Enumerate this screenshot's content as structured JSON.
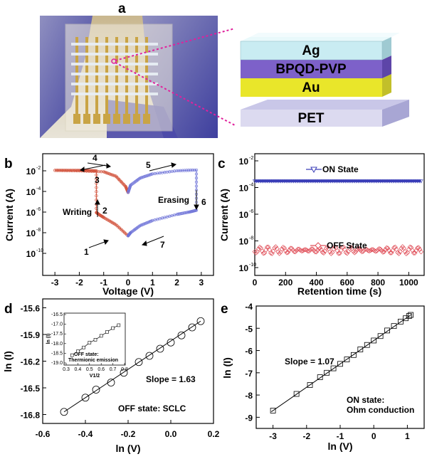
{
  "panel_labels": {
    "a": "a",
    "b": "b",
    "c": "c",
    "d": "d",
    "e": "e"
  },
  "panel_a": {
    "layers": [
      "Ag",
      "BPQD-PVP",
      "Au",
      "PET"
    ],
    "colors": {
      "ag": "#c9ecf2",
      "bpqd": "#7d61c9",
      "au": "#e9e62a",
      "pet": "#d9d7ee",
      "leader": "#e0219c"
    }
  },
  "panel_b": {
    "ylabel": "Current (A)",
    "xlabel": "Voltage (V)",
    "xticks": [
      "-3",
      "-2",
      "-1",
      "0",
      "1",
      "2",
      "3"
    ],
    "ytick_mant": [
      "10",
      "10",
      "10",
      "10",
      "10",
      "10"
    ],
    "ytick_exp": [
      "-2",
      "-4",
      "-6",
      "-8",
      "-10",
      ""
    ],
    "annotations": {
      "writing": "Writing",
      "erasing": "Erasing"
    },
    "step_numbers": [
      "1",
      "2",
      "3",
      "4",
      "5",
      "6",
      "7"
    ],
    "colors": {
      "set": "#d2553f",
      "reset": "#6f74d8"
    }
  },
  "panel_c": {
    "ylabel": "Current (A)",
    "xlabel": "Retention time (s)",
    "xticks": [
      "0",
      "200",
      "400",
      "600",
      "800",
      "1000"
    ],
    "ytick_mant": [
      "10",
      "10",
      "10",
      "10",
      "10"
    ],
    "ytick_exp": [
      "-2",
      "-4",
      "-6",
      "-8",
      "-10"
    ],
    "legend": {
      "on": "ON State",
      "off": "OFF State"
    },
    "colors": {
      "on": "#3b3fb8",
      "off": "#e0505a"
    }
  },
  "panel_d": {
    "ylabel": "ln (I)",
    "xlabel": "ln (V)",
    "xticks": [
      "-0.6",
      "-0.4",
      "-0.2",
      "0.0",
      "0.2"
    ],
    "yticks": [
      "-15.6",
      "-15.9",
      "-16.2",
      "-16.5",
      "-16.8"
    ],
    "slope_text": "Slope = 1.63",
    "state_text": "OFF state: SCLC",
    "inset": {
      "ylabel": "ln (I)",
      "xlabel": "V1/2",
      "xticks": [
        "0.3",
        "0.4",
        "0.5",
        "0.6",
        "0.7",
        "0.8"
      ],
      "yticks": [
        "-16.5",
        "-17.0",
        "-17.5",
        "-18.0",
        "-18.5",
        "-19.0"
      ],
      "text_line1": "OFF state:",
      "text_line2": "Thermionic emission"
    }
  },
  "panel_e": {
    "ylabel": "ln (I)",
    "xlabel": "ln (V)",
    "xticks": [
      "-3",
      "-2",
      "-1",
      "0",
      "1"
    ],
    "yticks": [
      "-4",
      "-5",
      "-6",
      "-7",
      "-8",
      "-9"
    ],
    "slope_text": "Slope = 1.07",
    "state_line1": "ON state:",
    "state_line2": "Ohm conduction"
  },
  "chart_data": [
    {
      "type": "line",
      "panel": "b",
      "xlabel": "Voltage (V)",
      "ylabel": "Current (A)",
      "xlim": [
        -3.5,
        3.5
      ],
      "ylim": [
        1e-10,
        0.01
      ],
      "yscale": "log",
      "series": [
        {
          "x": [
            0,
            -0.5,
            -1.0,
            -1.2,
            -1.3,
            -1.3,
            -1.8,
            -2.5,
            -3.0,
            -2.0,
            -1.0,
            -0.5,
            -0.1,
            0
          ],
          "y": [
            5e-09,
            6e-08,
            3e-07,
            6e-07,
            9e-07,
            0.01,
            0.011,
            0.011,
            0.011,
            0.01,
            0.008,
            0.003,
            0.0003,
            8e-05
          ]
        },
        {
          "x": [
            0,
            0.1,
            0.5,
            1.0,
            2.0,
            2.8,
            2.8,
            2.5,
            2.0,
            1.0,
            0.5,
            0.1,
            0
          ],
          "y": [
            8e-05,
            0.0004,
            0.002,
            0.005,
            0.01,
            0.012,
            1.5e-06,
            1e-06,
            6e-07,
            1.5e-07,
            5e-08,
            1e-08,
            5e-09
          ]
        }
      ]
    },
    {
      "type": "scatter",
      "panel": "c",
      "xlabel": "Retention time (s)",
      "ylabel": "Current (A)",
      "xlim": [
        0,
        1100
      ],
      "ylim": [
        1e-10,
        0.01
      ],
      "yscale": "log",
      "series": [
        {
          "name": "ON State",
          "x": [
            0,
            1080
          ],
          "y": [
            0.0003,
            0.0003
          ]
        },
        {
          "name": "OFF State",
          "x": [
            0,
            1080
          ],
          "y": [
            2e-09,
            2e-09
          ]
        }
      ]
    },
    {
      "type": "scatter",
      "panel": "d",
      "xlabel": "ln (V)",
      "ylabel": "ln (I)",
      "xlim": [
        -0.6,
        0.2
      ],
      "ylim": [
        -16.9,
        -15.5
      ],
      "x": [
        -0.5,
        -0.4,
        -0.35,
        -0.28,
        -0.22,
        -0.15,
        -0.1,
        -0.05,
        0.0,
        0.05,
        0.1,
        0.14
      ],
      "y": [
        -16.77,
        -16.61,
        -16.52,
        -16.44,
        -16.33,
        -16.21,
        -16.14,
        -16.06,
        -15.99,
        -15.91,
        -15.82,
        -15.75
      ]
    },
    {
      "type": "scatter",
      "panel": "d-inset",
      "xlabel": "V1/2",
      "ylabel": "ln (I)",
      "xlim": [
        0.3,
        0.8
      ],
      "ylim": [
        -19.0,
        -16.5
      ],
      "x": [
        0.35,
        0.4,
        0.45,
        0.5,
        0.55,
        0.6,
        0.65,
        0.7,
        0.75
      ],
      "y": [
        -18.6,
        -18.4,
        -18.2,
        -17.95,
        -17.8,
        -17.6,
        -17.4,
        -17.2,
        -17.05
      ]
    },
    {
      "type": "scatter",
      "panel": "e",
      "xlabel": "ln (V)",
      "ylabel": "ln (I)",
      "xlim": [
        -3.5,
        1.5
      ],
      "ylim": [
        -9.5,
        -4
      ],
      "slope": 1.07,
      "x": [
        -3.0,
        -2.3,
        -1.9,
        -1.6,
        -1.4,
        -1.2,
        -1.0,
        -0.8,
        -0.6,
        -0.4,
        -0.2,
        0.0,
        0.2,
        0.4,
        0.6,
        0.8,
        0.95,
        1.05,
        1.1
      ],
      "y": [
        -8.7,
        -7.95,
        -7.55,
        -7.2,
        -7.0,
        -6.8,
        -6.6,
        -6.4,
        -6.2,
        -5.95,
        -5.75,
        -5.55,
        -5.35,
        -5.1,
        -4.9,
        -4.7,
        -4.55,
        -4.45,
        -4.4
      ]
    }
  ]
}
